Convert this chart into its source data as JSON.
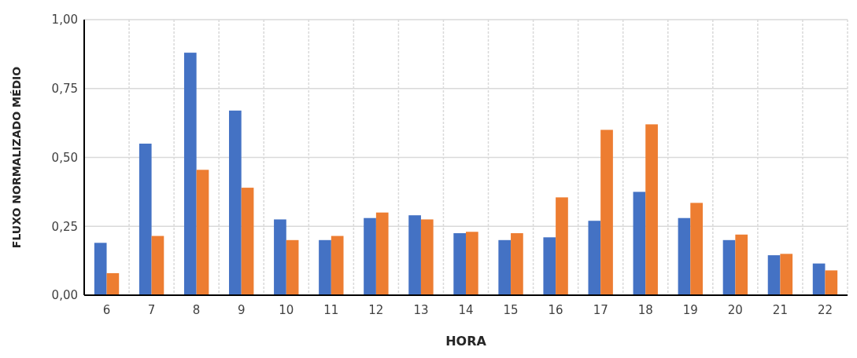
{
  "chart_data": {
    "type": "bar",
    "xlabel": "HORA",
    "ylabel": "FLUXO NORMALIZADO MÉDIO",
    "categories": [
      "6",
      "7",
      "8",
      "9",
      "10",
      "11",
      "12",
      "13",
      "14",
      "15",
      "16",
      "17",
      "18",
      "19",
      "20",
      "21",
      "22"
    ],
    "series": [
      {
        "color": "#4472c4",
        "values": [
          0.19,
          0.55,
          0.88,
          0.67,
          0.275,
          0.2,
          0.28,
          0.29,
          0.225,
          0.2,
          0.21,
          0.27,
          0.375,
          0.28,
          0.2,
          0.145,
          0.115
        ]
      },
      {
        "color": "#ed7d31",
        "values": [
          0.08,
          0.215,
          0.455,
          0.39,
          0.2,
          0.215,
          0.3,
          0.275,
          0.23,
          0.225,
          0.355,
          0.6,
          0.62,
          0.335,
          0.22,
          0.15,
          0.09
        ]
      }
    ],
    "ylim": [
      0,
      1
    ],
    "yticks": [
      {
        "value": 0,
        "label": "0,00"
      },
      {
        "value": 0.25,
        "label": "0,25"
      },
      {
        "value": 0.5,
        "label": "0,50"
      },
      {
        "value": 0.75,
        "label": "0,75"
      },
      {
        "value": 1,
        "label": "1,00"
      }
    ],
    "grid": true
  }
}
